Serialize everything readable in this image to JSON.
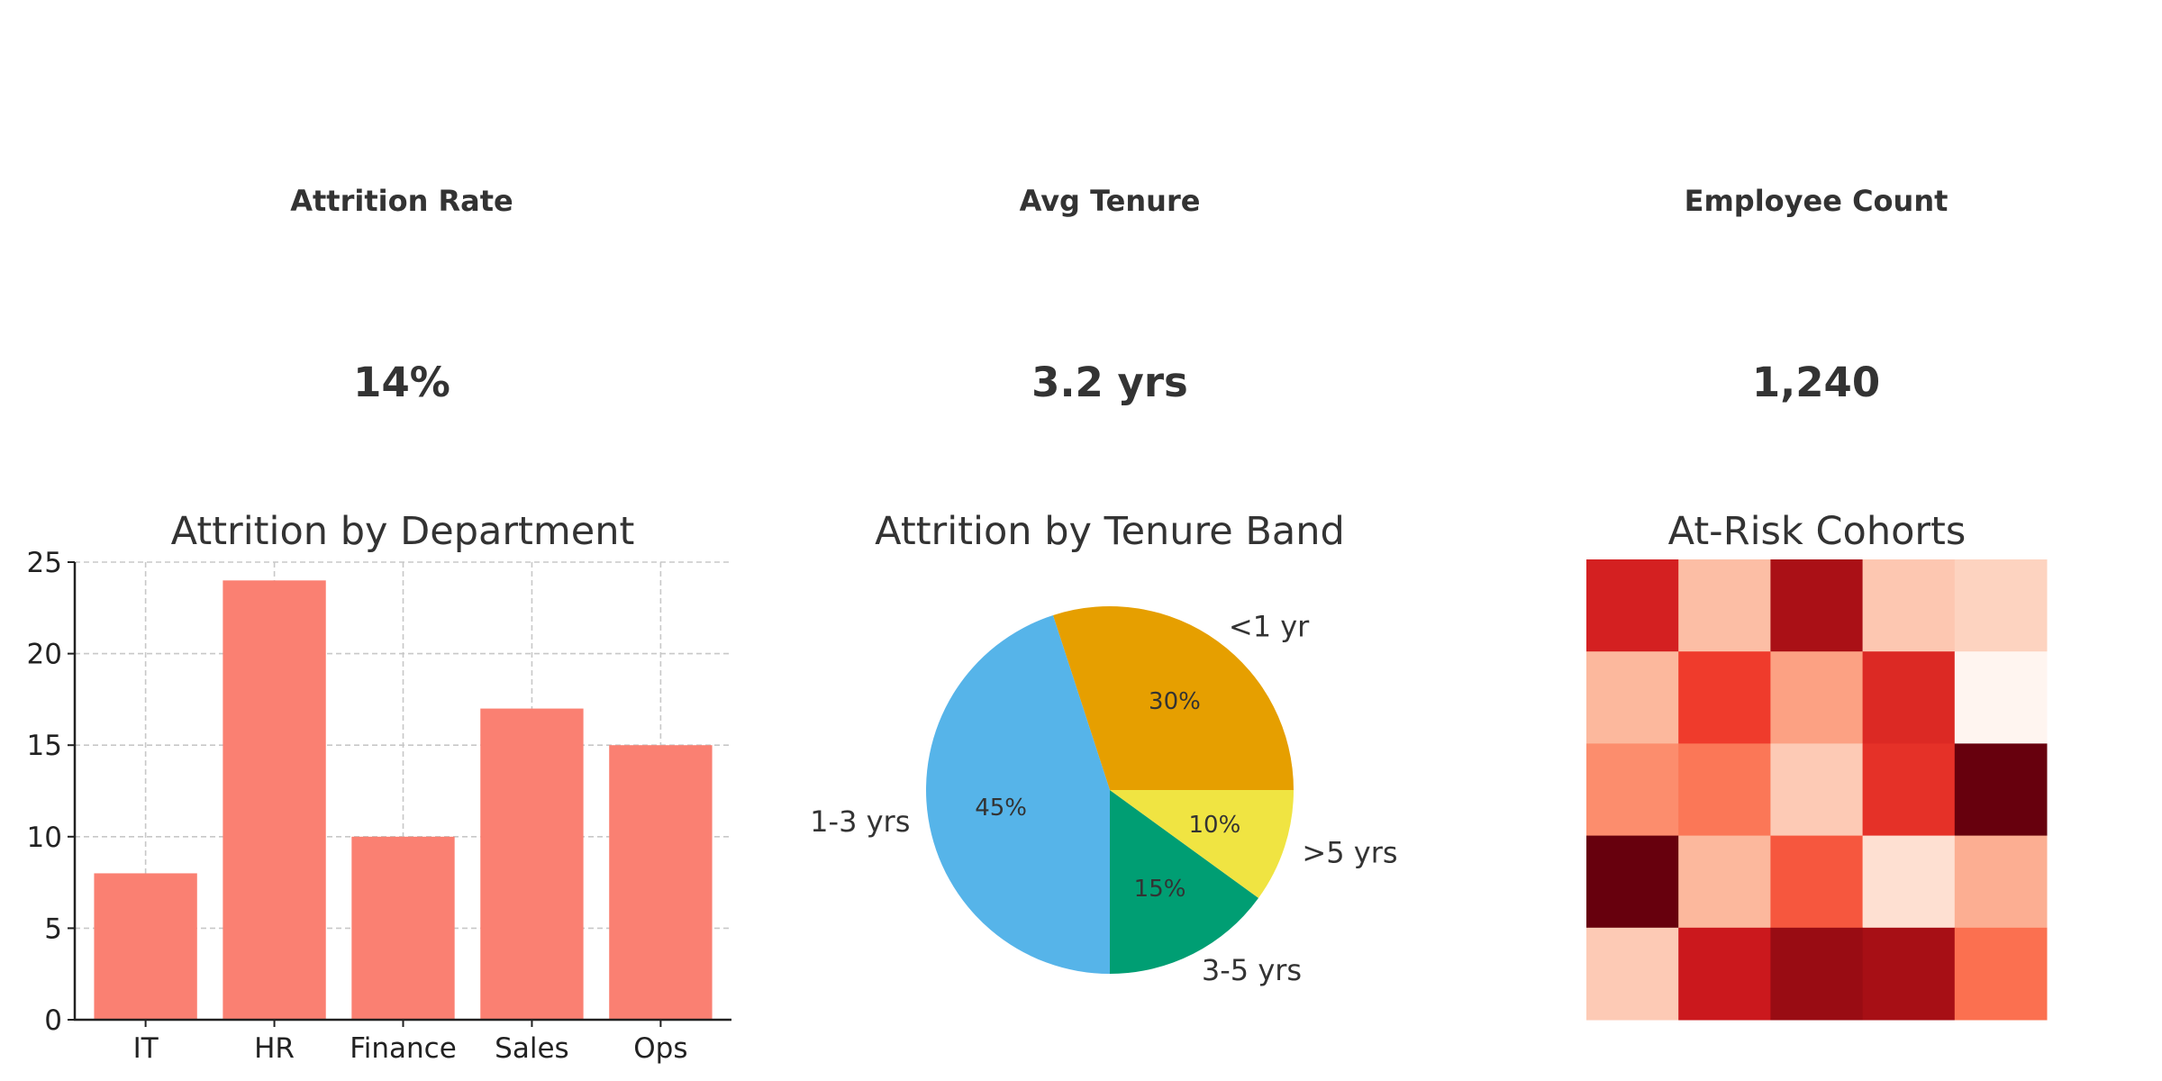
{
  "kpis": [
    {
      "title": "Attrition Rate",
      "value": "14%"
    },
    {
      "title": "Avg Tenure",
      "value": "3.2 yrs"
    },
    {
      "title": "Employee Count",
      "value": "1,240"
    }
  ],
  "chart_data": [
    {
      "type": "bar",
      "title": "Attrition by Department",
      "categories": [
        "IT",
        "HR",
        "Finance",
        "Sales",
        "Ops"
      ],
      "values": [
        8,
        24,
        10,
        17,
        15
      ],
      "ylim": [
        0,
        25
      ],
      "yticks": [
        0,
        5,
        10,
        15,
        20,
        25
      ],
      "grid": true,
      "color": "#fa8072"
    },
    {
      "type": "pie",
      "title": "Attrition by Tenure Band",
      "labels": [
        "<1 yr",
        "1-3 yrs",
        "3-5 yrs",
        ">5 yrs"
      ],
      "values": [
        30,
        45,
        15,
        10
      ],
      "pct_labels": [
        "30%",
        "45%",
        "15%",
        "10%"
      ],
      "colors": [
        "#e69f00",
        "#56b4e9",
        "#009e73",
        "#f0e442"
      ]
    },
    {
      "type": "heatmap",
      "title": "At-Risk Cohorts",
      "colormap": "Reds",
      "values": [
        [
          0.72,
          0.24,
          0.86,
          0.21,
          0.17
        ],
        [
          0.26,
          0.625,
          0.33,
          0.69,
          0.0
        ],
        [
          0.39,
          0.46,
          0.2,
          0.66,
          1.0
        ],
        [
          1.0,
          0.26,
          0.55,
          0.125,
          0.29
        ],
        [
          0.2,
          0.75,
          0.9,
          0.87,
          0.48
        ]
      ]
    }
  ]
}
